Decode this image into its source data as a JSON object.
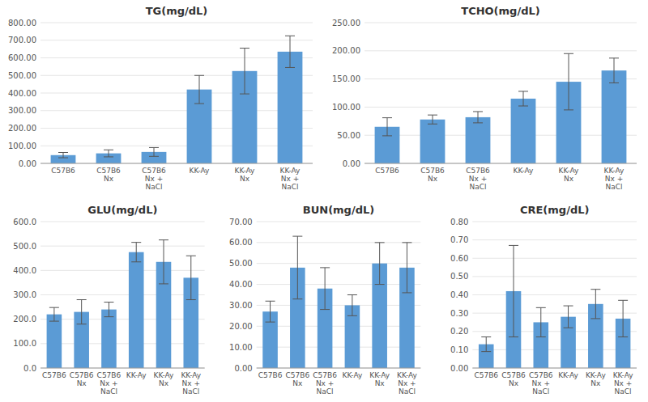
{
  "chart_data": [
    {
      "type": "bar",
      "title": "TG(mg/dL)",
      "categories": [
        "C57B6",
        "C57B6\nNx",
        "C57B6\nNx +\nNaCl",
        "KK-Ay",
        "KK-Ay\nNx",
        "KK-Ay\nNx +\nNaCl"
      ],
      "values": [
        47,
        57,
        65,
        420,
        525,
        635
      ],
      "errors": [
        15,
        20,
        25,
        80,
        130,
        90
      ],
      "color": "#5B9BD5",
      "ylim": [
        0,
        800
      ],
      "yticks": [
        {
          "value": 0,
          "label": "0.00"
        },
        {
          "value": 100,
          "label": "100.00"
        },
        {
          "value": 200,
          "label": "200.00"
        },
        {
          "value": 300,
          "label": "300.00"
        },
        {
          "value": 400,
          "label": "400.00"
        },
        {
          "value": 500,
          "label": "500.00"
        },
        {
          "value": 600,
          "label": "600.00"
        },
        {
          "value": 700,
          "label": "700.00"
        },
        {
          "value": 800,
          "label": "800.00"
        }
      ],
      "grid": true
    },
    {
      "type": "bar",
      "title": "TCHO(mg/dL)",
      "categories": [
        "C57B6",
        "C57B6\nNx",
        "C57B6\nNx +\nNaCl",
        "KK-Ay",
        "KK-Ay\nNx",
        "KK-Ay\nNx +\nNaCl"
      ],
      "values": [
        65,
        78,
        82,
        115,
        145,
        165
      ],
      "errors": [
        16,
        8,
        10,
        13,
        50,
        22
      ],
      "color": "#5B9BD5",
      "ylim": [
        0,
        250
      ],
      "yticks": [
        {
          "value": 0,
          "label": "0.00"
        },
        {
          "value": 50,
          "label": "50.00"
        },
        {
          "value": 100,
          "label": "100.00"
        },
        {
          "value": 150,
          "label": "150.00"
        },
        {
          "value": 200,
          "label": "200.00"
        },
        {
          "value": 250,
          "label": "250.00"
        }
      ],
      "grid": true
    },
    {
      "type": "bar",
      "title": "GLU(mg/dL)",
      "categories": [
        "C57B6",
        "C57B6\nNx",
        "C57B6\nNx +\nNaCl",
        "KK-Ay",
        "KK-Ay\nNx",
        "KK-Ay\nNx +\nNaCl"
      ],
      "values": [
        220,
        230,
        240,
        475,
        435,
        370
      ],
      "errors": [
        28,
        50,
        30,
        40,
        90,
        90
      ],
      "color": "#5B9BD5",
      "ylim": [
        0,
        600
      ],
      "yticks": [
        {
          "value": 0,
          "label": "0.0"
        },
        {
          "value": 100,
          "label": "100.0"
        },
        {
          "value": 200,
          "label": "200.0"
        },
        {
          "value": 300,
          "label": "300.0"
        },
        {
          "value": 400,
          "label": "400.0"
        },
        {
          "value": 500,
          "label": "500.0"
        },
        {
          "value": 600,
          "label": "600.0"
        }
      ],
      "grid": true
    },
    {
      "type": "bar",
      "title": "BUN(mg/dL)",
      "categories": [
        "C57B6",
        "C57B6\nNx",
        "C57B6\nNx +\nNaCl",
        "KK-Ay",
        "KK-Ay\nNx",
        "KK-Ay\nNx +\nNaCl"
      ],
      "values": [
        27,
        48,
        38,
        30,
        50,
        48
      ],
      "errors": [
        5,
        15,
        10,
        5,
        10,
        12
      ],
      "color": "#5B9BD5",
      "ylim": [
        0,
        70
      ],
      "yticks": [
        {
          "value": 0,
          "label": "0.00"
        },
        {
          "value": 10,
          "label": "10.00"
        },
        {
          "value": 20,
          "label": "20.00"
        },
        {
          "value": 30,
          "label": "30.00"
        },
        {
          "value": 40,
          "label": "40.00"
        },
        {
          "value": 50,
          "label": "50.00"
        },
        {
          "value": 60,
          "label": "60.00"
        },
        {
          "value": 70,
          "label": "70.00"
        }
      ],
      "grid": true
    },
    {
      "type": "bar",
      "title": "CRE(mg/dL)",
      "categories": [
        "C57B6",
        "C57B6\nNx",
        "C57B6\nNx +\nNaCl",
        "KK-Ay",
        "KK-Ay\nNx",
        "KK-Ay\nNx +\nNaCl"
      ],
      "values": [
        0.13,
        0.42,
        0.25,
        0.28,
        0.35,
        0.27
      ],
      "errors": [
        0.04,
        0.25,
        0.08,
        0.06,
        0.08,
        0.1
      ],
      "color": "#5B9BD5",
      "ylim": [
        0,
        0.8
      ],
      "yticks": [
        {
          "value": 0,
          "label": "0.00"
        },
        {
          "value": 0.1,
          "label": "0.10"
        },
        {
          "value": 0.2,
          "label": "0.20"
        },
        {
          "value": 0.3,
          "label": "0.30"
        },
        {
          "value": 0.4,
          "label": "0.40"
        },
        {
          "value": 0.5,
          "label": "0.50"
        },
        {
          "value": 0.6,
          "label": "0.60"
        },
        {
          "value": 0.7,
          "label": "0.70"
        },
        {
          "value": 0.8,
          "label": "0.80"
        }
      ],
      "grid": true
    }
  ]
}
